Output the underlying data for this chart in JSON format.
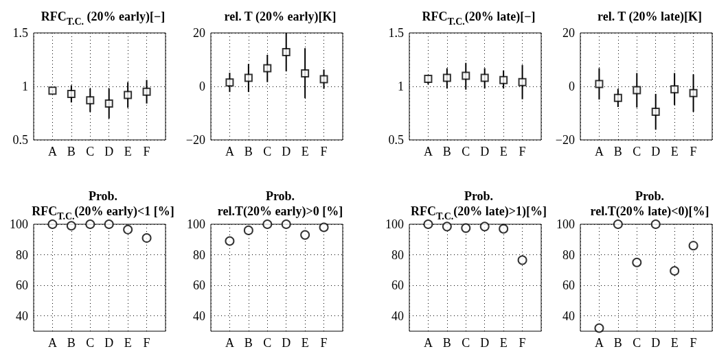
{
  "chart_data": [
    {
      "type": "scatter",
      "title": "RFC$_{T.C.}$ (20% early)[−]",
      "categories": [
        "A",
        "B",
        "C",
        "D",
        "E",
        "F"
      ],
      "values": [
        0.96,
        0.93,
        0.87,
        0.84,
        0.92,
        0.95
      ],
      "errors": [
        [
          0.94,
          0.97
        ],
        [
          0.85,
          1.01
        ],
        [
          0.76,
          0.98
        ],
        [
          0.7,
          0.98
        ],
        [
          0.8,
          1.04
        ],
        [
          0.84,
          1.06
        ]
      ],
      "color": "#000000",
      "marker": "square",
      "grid": true,
      "ylim": [
        0.5,
        1.5
      ],
      "yticks": [
        0.5,
        1,
        1.5
      ]
    },
    {
      "type": "scatter",
      "title": "rel. T (20% early)[K]",
      "categories": [
        "A",
        "B",
        "C",
        "D",
        "E",
        "F"
      ],
      "values": [
        1.5,
        3.2,
        6.8,
        12.8,
        4.9,
        2.7
      ],
      "errors": [
        [
          -2.1,
          5.1
        ],
        [
          -2.1,
          8.4
        ],
        [
          1.6,
          11.8
        ],
        [
          5.6,
          20
        ],
        [
          -4.4,
          14.3
        ],
        [
          -0.9,
          6.3
        ]
      ],
      "color": "#000000",
      "marker": "square",
      "grid": true,
      "ylim": [
        -20,
        20
      ],
      "yticks": [
        {
          "value": -20,
          "label": "−20"
        },
        0,
        20
      ]
    },
    {
      "type": "scatter",
      "title": "RFC$_{T.C.}$(20% late)[−]",
      "categories": [
        "A",
        "B",
        "C",
        "D",
        "E",
        "F"
      ],
      "values": [
        1.07,
        1.08,
        1.1,
        1.08,
        1.06,
        1.04
      ],
      "errors": [
        [
          1.02,
          1.1
        ],
        [
          0.98,
          1.17
        ],
        [
          0.97,
          1.22
        ],
        [
          0.98,
          1.17
        ],
        [
          0.98,
          1.15
        ],
        [
          0.88,
          1.2
        ]
      ],
      "color": "#000000",
      "marker": "square",
      "grid": true,
      "ylim": [
        0.5,
        1.5
      ],
      "yticks": [
        0.5,
        1,
        1.5
      ]
    },
    {
      "type": "scatter",
      "title": "rel. T (20% late)[K]",
      "categories": [
        "A",
        "B",
        "C",
        "D",
        "E",
        "F"
      ],
      "values": [
        0.9,
        -4.3,
        -1.4,
        -9.5,
        -1.1,
        -2.5
      ],
      "errors": [
        [
          -4.9,
          6.8
        ],
        [
          -7.7,
          -0.9
        ],
        [
          -7.9,
          5
        ],
        [
          -16.2,
          -2.8
        ],
        [
          -7,
          5
        ],
        [
          -9.5,
          4.5
        ]
      ],
      "color": "#000000",
      "marker": "square",
      "grid": true,
      "ylim": [
        -20,
        20
      ],
      "yticks": [
        {
          "value": -20,
          "label": "−20"
        },
        0,
        20
      ]
    },
    {
      "type": "scatter",
      "title": "Prob.\nRFC$_{T.C.}$(20% early)<1 [%]",
      "categories": [
        "A",
        "B",
        "C",
        "D",
        "E",
        "F"
      ],
      "values": [
        100,
        99,
        100,
        100,
        96.5,
        91
      ],
      "color": "#000000",
      "marker": "circle",
      "grid": true,
      "ylim": [
        30,
        100
      ],
      "yticks": [
        40,
        60,
        80,
        100
      ]
    },
    {
      "type": "scatter",
      "title": "Prob.\nrel.T(20% early)>0 [%]",
      "categories": [
        "A",
        "B",
        "C",
        "D",
        "E",
        "F"
      ],
      "values": [
        89,
        96,
        100,
        100,
        93,
        98
      ],
      "color": "#000000",
      "marker": "circle",
      "grid": true,
      "ylim": [
        30,
        100
      ],
      "yticks": [
        40,
        60,
        80,
        100
      ]
    },
    {
      "type": "scatter",
      "title": "Prob.\nRFC$_{T.C.}$(20% late)>1)[%]",
      "categories": [
        "A",
        "B",
        "C",
        "D",
        "E",
        "F"
      ],
      "values": [
        100,
        98.5,
        97.5,
        98.5,
        97,
        76.5
      ],
      "color": "#000000",
      "marker": "circle",
      "grid": true,
      "ylim": [
        30,
        100
      ],
      "yticks": [
        40,
        60,
        80,
        100
      ]
    },
    {
      "type": "scatter",
      "title": "Prob.\nrel.T(20% late)<0)[%]",
      "categories": [
        "A",
        "B",
        "C",
        "D",
        "E",
        "F"
      ],
      "values": [
        32,
        100,
        75,
        100,
        69.5,
        86
      ],
      "color": "#000000",
      "marker": "circle",
      "grid": true,
      "ylim": [
        30,
        100
      ],
      "yticks": [
        40,
        60,
        80,
        100
      ]
    }
  ]
}
